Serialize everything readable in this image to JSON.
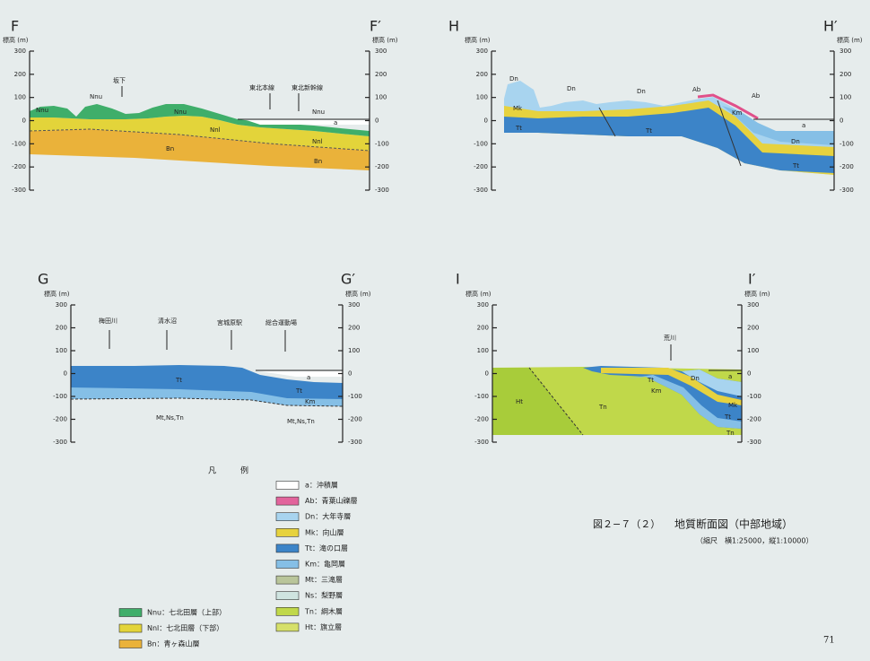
{
  "axis_label": "標高 (m)",
  "ticks": [
    "300",
    "200",
    "100",
    "0",
    "-100",
    "-200",
    "-300"
  ],
  "sections": {
    "F": {
      "start": "F",
      "end": "F′",
      "labels": [
        "坂下",
        "東北本線",
        "東北新幹線",
        "Nnu",
        "Nnu",
        "Nnu",
        "Nnu",
        "Nnl",
        "Nnl",
        "Bn",
        "Bn",
        "a"
      ]
    },
    "H": {
      "start": "H",
      "end": "H′",
      "labels": [
        "Dn",
        "Dn",
        "Dn",
        "Dn",
        "Mk",
        "Tt",
        "Tt",
        "Ab",
        "Ab",
        "Km",
        "a",
        "Tt"
      ]
    },
    "G": {
      "start": "G",
      "end": "G′",
      "labels": [
        "梅田川",
        "清水沼",
        "宮城原駅",
        "総合運動場",
        "Tt",
        "Tt",
        "a",
        "Km",
        "Mt,Ns,Tn",
        "Mt,Ns,Tn"
      ]
    },
    "I": {
      "start": "I",
      "end": "I′",
      "labels": [
        "荒川",
        "Ht",
        "Tn",
        "Tt",
        "Km",
        "Dn",
        "Mk",
        "Tt",
        "Tn",
        "a"
      ]
    }
  },
  "legend": {
    "title": "凡　　　例",
    "items": [
      {
        "label": "a：沖積層",
        "color": "#ffffff"
      },
      {
        "label": "Ab：青葉山礫層",
        "color": "#e2649c"
      },
      {
        "label": "Dn：大年寺層",
        "color": "#a8d4ef"
      },
      {
        "label": "Mk：向山層",
        "color": "#e6d23f"
      },
      {
        "label": "Tt：滝の口層",
        "color": "#3c84c8"
      },
      {
        "label": "Km：亀岡層",
        "color": "#85bfe6"
      },
      {
        "label": "Mt：三滝層",
        "color": "#b9c59a"
      },
      {
        "label": "Ns：梨野層",
        "color": "#cfe4e0"
      },
      {
        "label": "Tn：綱木層",
        "color": "#c0d84a"
      },
      {
        "label": "Ht：旗立層",
        "color": "#d6e06a"
      }
    ],
    "items_left": [
      {
        "label": "Nnu：七北田層（上部）",
        "color": "#3fae6a"
      },
      {
        "label": "Nnl：七北田層（下部）",
        "color": "#e3d43a"
      },
      {
        "label": "Bn：青ヶ森山層",
        "color": "#eab23a"
      }
    ]
  },
  "caption": {
    "figure": "図２−７（２）",
    "title": "地質断面図（中部地域）",
    "scale": "（縮尺　横1:25000，縦1:10000）"
  },
  "page_number": "71"
}
